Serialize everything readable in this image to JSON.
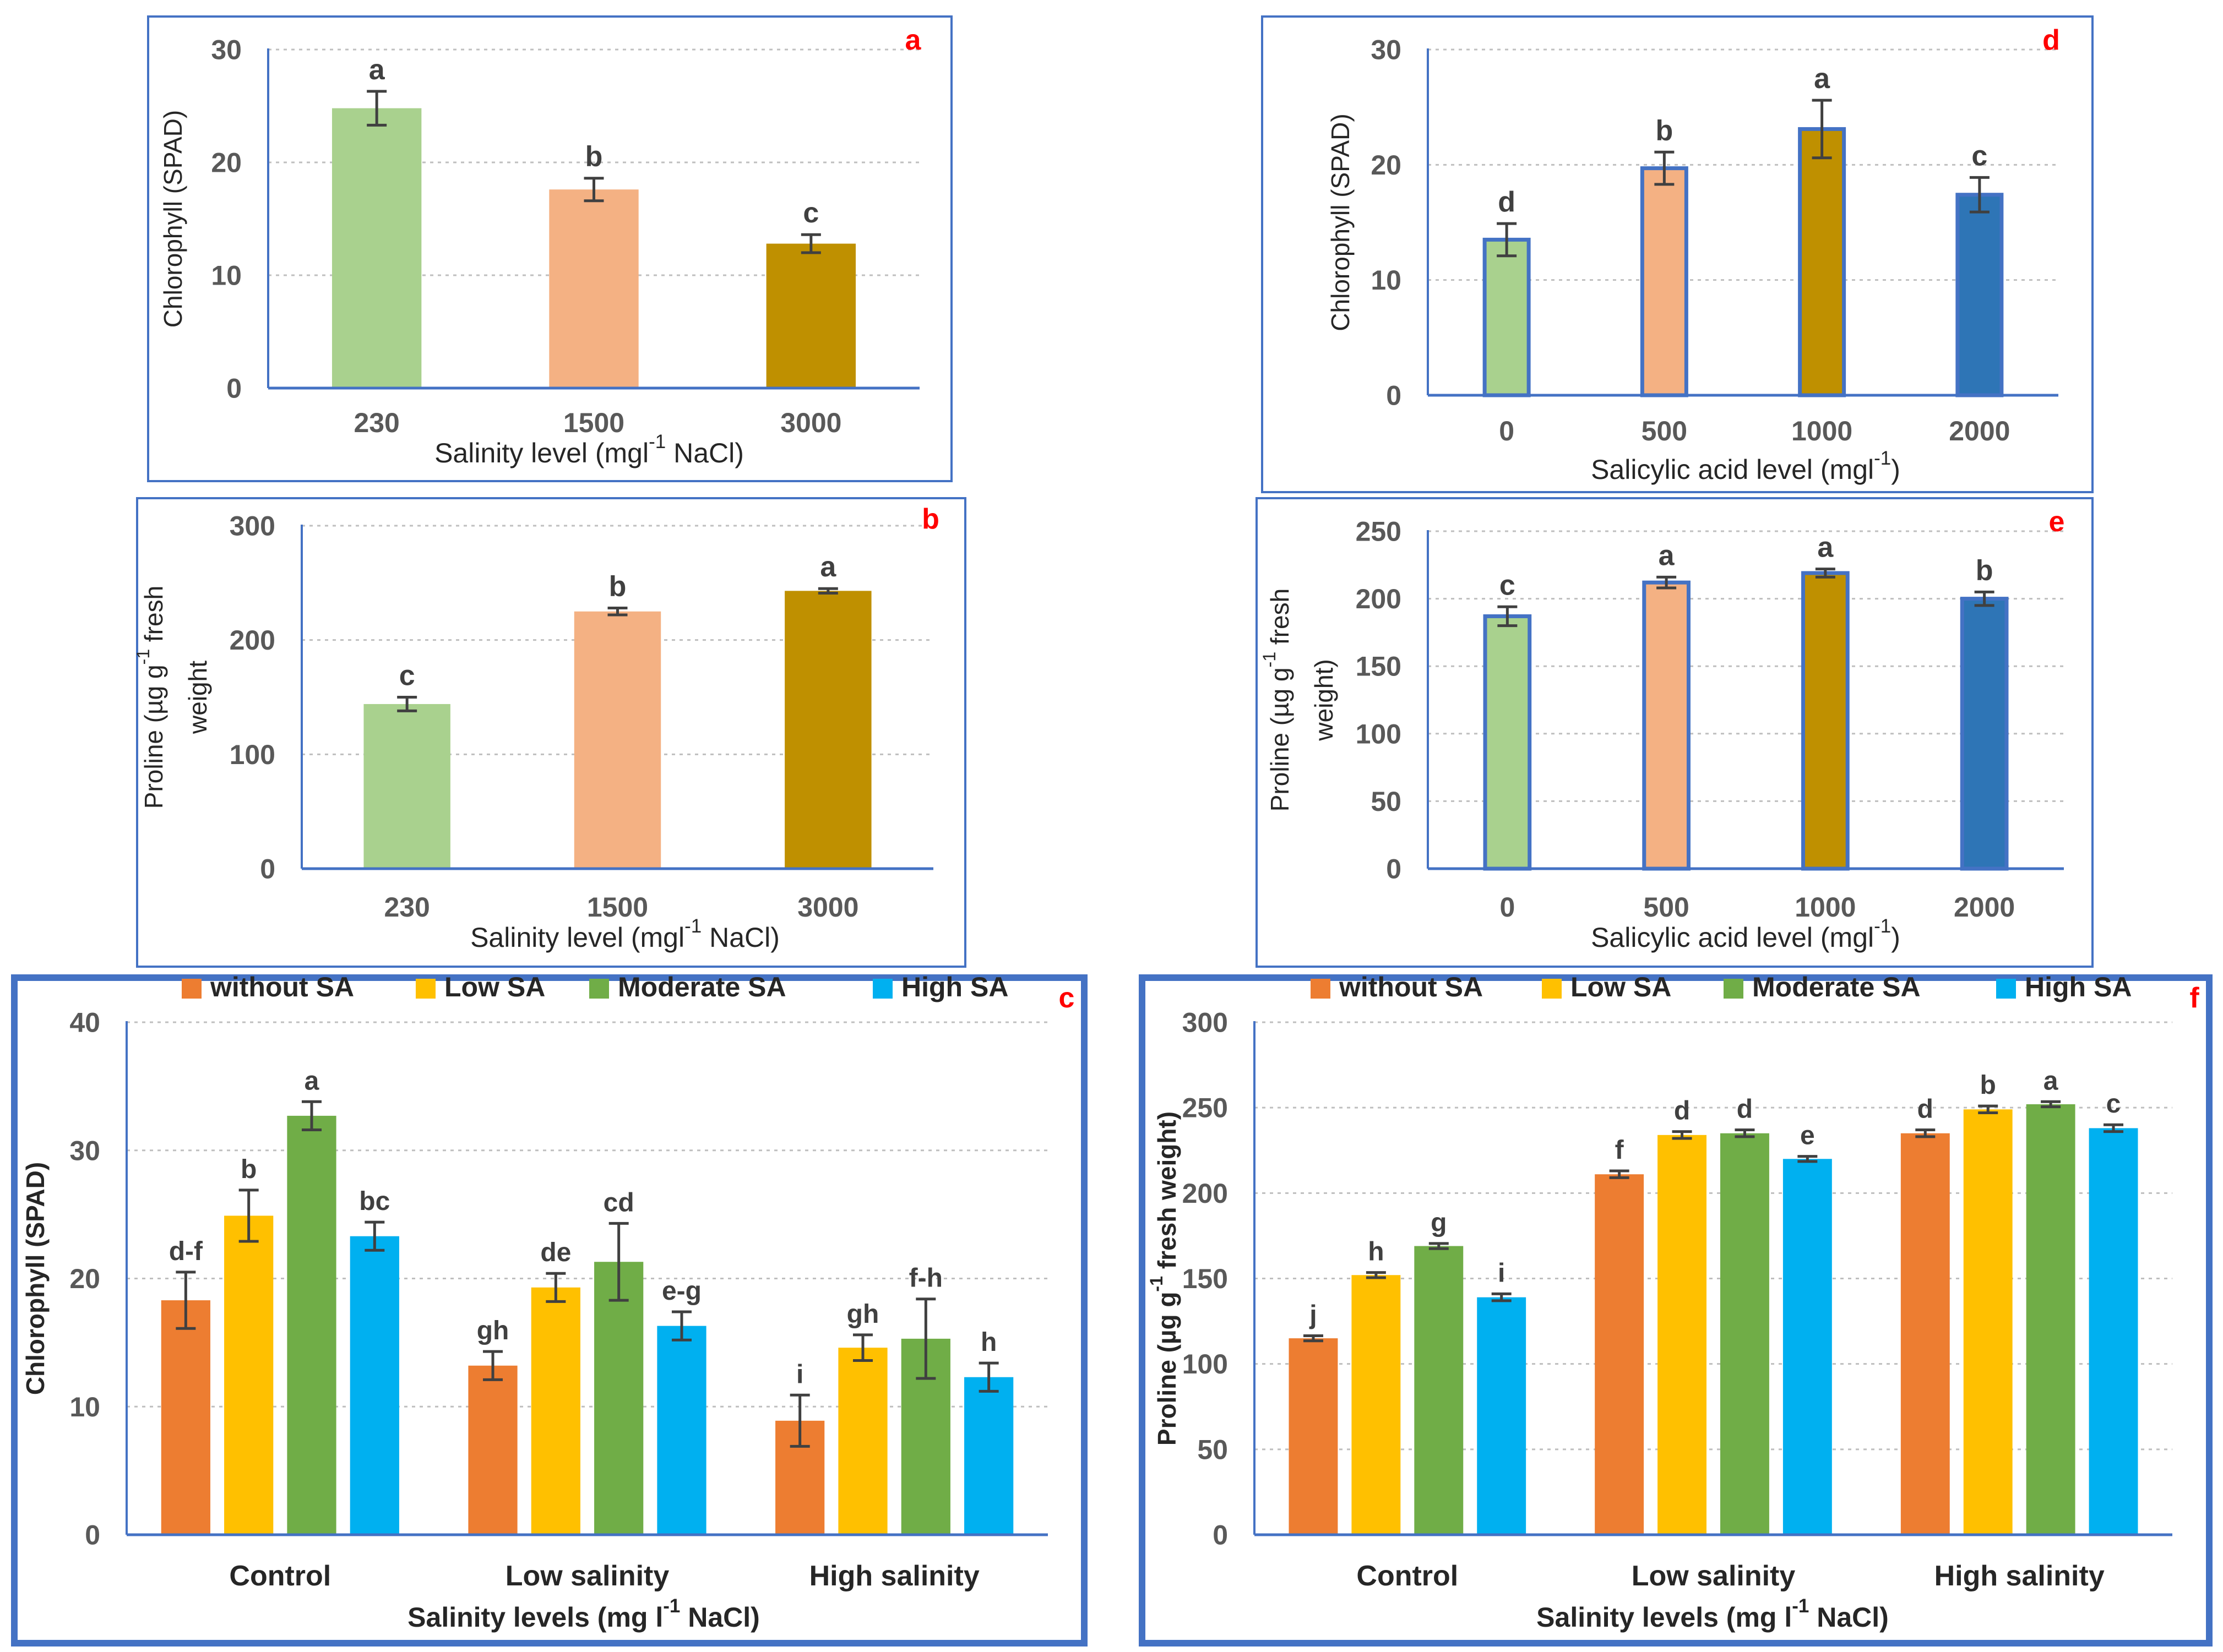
{
  "colors": {
    "light_green": "#a9d18e",
    "peach": "#f4b183",
    "olive": "#bf9000",
    "blue": "#2e75b6",
    "orange": "#ed7d31",
    "yellow": "#ffc000",
    "green": "#70ad47",
    "cyan": "#00b0f0",
    "panel_border": "#4472c4",
    "letter_red": "#ff0000",
    "errbar": "#404040"
  },
  "chart_data": [
    {
      "id": "a",
      "type": "bar",
      "panel_label": "a",
      "ylabel": "Chlorophyll (SPAD)",
      "xlabel_parts": [
        "Salinity level (mgl",
        "-1",
        " NaCl)"
      ],
      "ylim": [
        0,
        30
      ],
      "yticks": [
        0,
        10,
        20,
        30
      ],
      "ytick_labels": [
        "0",
        "10",
        "20",
        "30"
      ],
      "grid": true,
      "categories": [
        "230",
        "1500",
        "3000"
      ],
      "values": [
        24.8,
        17.6,
        12.8
      ],
      "errors": [
        1.5,
        1.0,
        0.8
      ],
      "sig_labels": [
        "a",
        "b",
        "c"
      ],
      "bar_colors": [
        "#a9d18e",
        "#f4b183",
        "#bf9000"
      ]
    },
    {
      "id": "b",
      "type": "bar",
      "panel_label": "b",
      "ylabel_lines": [
        [
          "Proline (µg g",
          "-1",
          " fresh"
        ],
        [
          "weight"
        ]
      ],
      "xlabel_parts": [
        "Salinity level (mgl",
        "-1",
        " NaCl)"
      ],
      "ylim": [
        0,
        300
      ],
      "yticks": [
        0,
        100,
        200,
        300
      ],
      "ytick_labels": [
        "0",
        "100",
        "200",
        "300"
      ],
      "grid": true,
      "categories": [
        "230",
        "1500",
        "3000"
      ],
      "values": [
        144,
        225,
        243
      ],
      "errors": [
        6,
        3,
        2
      ],
      "sig_labels": [
        "c",
        "b",
        "a"
      ],
      "bar_colors": [
        "#a9d18e",
        "#f4b183",
        "#bf9000"
      ]
    },
    {
      "id": "c",
      "type": "bar",
      "panel_label": "c",
      "ylabel": "Chlorophyll (SPAD)",
      "xlabel_parts": [
        "Salinity levels (mg l",
        "-1",
        " NaCl)"
      ],
      "ylim": [
        0,
        40
      ],
      "yticks": [
        0,
        10,
        20,
        30,
        40
      ],
      "ytick_labels": [
        "0",
        "10",
        "20",
        "30",
        "40"
      ],
      "grid": true,
      "legend": "top",
      "categories": [
        "Control",
        "Low salinity",
        "High salinity"
      ],
      "series": [
        {
          "name": "without SA",
          "color": "#ed7d31",
          "values": [
            18.3,
            13.2,
            8.9
          ],
          "errors": [
            2.2,
            1.1,
            2.0
          ],
          "sig_labels": [
            "d-f",
            "gh",
            "i"
          ]
        },
        {
          "name": "Low SA",
          "color": "#ffc000",
          "values": [
            24.9,
            19.3,
            14.6
          ],
          "errors": [
            2.0,
            1.1,
            1.0
          ],
          "sig_labels": [
            "b",
            "de",
            "gh"
          ]
        },
        {
          "name": "Moderate SA",
          "color": "#70ad47",
          "values": [
            32.7,
            21.3,
            15.3
          ],
          "errors": [
            1.1,
            3.0,
            3.1
          ],
          "sig_labels": [
            "a",
            "cd",
            "f-h"
          ]
        },
        {
          "name": "High SA",
          "color": "#00b0f0",
          "values": [
            23.3,
            16.3,
            12.3
          ],
          "errors": [
            1.1,
            1.1,
            1.1
          ],
          "sig_labels": [
            "bc",
            "e-g",
            "h"
          ]
        }
      ]
    },
    {
      "id": "d",
      "type": "bar",
      "panel_label": "d",
      "ylabel": "Chlorophyll (SPAD)",
      "xlabel_parts": [
        "Salicylic acid level (mgl",
        "-1",
        ")"
      ],
      "ylim": [
        0,
        30
      ],
      "yticks": [
        0,
        10,
        20,
        30
      ],
      "ytick_labels": [
        "0",
        "10",
        "20",
        "30"
      ],
      "grid": true,
      "categories": [
        "0",
        "500",
        "1000",
        "2000"
      ],
      "values": [
        13.5,
        19.7,
        23.1,
        17.4
      ],
      "errors": [
        1.4,
        1.4,
        2.5,
        1.5
      ],
      "sig_labels": [
        "d",
        "b",
        "a",
        "c"
      ],
      "bar_colors": [
        "#a9d18e",
        "#f4b183",
        "#bf9000",
        "#2e75b6"
      ]
    },
    {
      "id": "e",
      "type": "bar",
      "panel_label": "e",
      "ylabel_lines": [
        [
          "Proline (µg g",
          "-1",
          " fresh"
        ],
        [
          "weight)"
        ]
      ],
      "xlabel_parts": [
        "Salicylic acid level (mgl",
        "-1",
        ")"
      ],
      "ylim": [
        0,
        250
      ],
      "yticks": [
        0,
        50,
        100,
        150,
        200,
        250
      ],
      "ytick_labels": [
        "0",
        "50",
        "100",
        "150",
        "200",
        "250"
      ],
      "grid": true,
      "categories": [
        "0",
        "500",
        "1000",
        "2000"
      ],
      "values": [
        187,
        212,
        219,
        200
      ],
      "errors": [
        7,
        4,
        3,
        5
      ],
      "sig_labels": [
        "c",
        "a",
        "a",
        "b"
      ],
      "bar_colors": [
        "#a9d18e",
        "#f4b183",
        "#bf9000",
        "#2e75b6"
      ]
    },
    {
      "id": "f",
      "type": "bar",
      "panel_label": "f",
      "ylabel_parts": [
        "Proline (µg g",
        "-1",
        " fresh weight)"
      ],
      "xlabel_parts": [
        "Salinity levels (mg l",
        "-1",
        " NaCl)"
      ],
      "ylim": [
        0,
        300
      ],
      "yticks": [
        0,
        50,
        100,
        150,
        200,
        250,
        300
      ],
      "ytick_labels": [
        "0",
        "50",
        "100",
        "150",
        "200",
        "250",
        "300"
      ],
      "grid": true,
      "legend": "top",
      "categories": [
        "Control",
        "Low salinity",
        "High salinity"
      ],
      "series": [
        {
          "name": "without SA",
          "color": "#ed7d31",
          "values": [
            115,
            211,
            235
          ],
          "errors": [
            1.5,
            2,
            2
          ],
          "sig_labels": [
            "j",
            "f",
            "d"
          ]
        },
        {
          "name": "Low SA",
          "color": "#ffc000",
          "values": [
            152,
            234,
            249
          ],
          "errors": [
            1.5,
            2,
            2
          ],
          "sig_labels": [
            "h",
            "d",
            "b"
          ]
        },
        {
          "name": "Moderate SA",
          "color": "#70ad47",
          "values": [
            169,
            235,
            252
          ],
          "errors": [
            1.5,
            2,
            1.5
          ],
          "sig_labels": [
            "g",
            "d",
            "a"
          ]
        },
        {
          "name": "High SA",
          "color": "#00b0f0",
          "values": [
            139,
            220,
            238
          ],
          "errors": [
            2,
            1.5,
            2
          ],
          "sig_labels": [
            "i",
            "e",
            "c"
          ]
        }
      ]
    }
  ]
}
